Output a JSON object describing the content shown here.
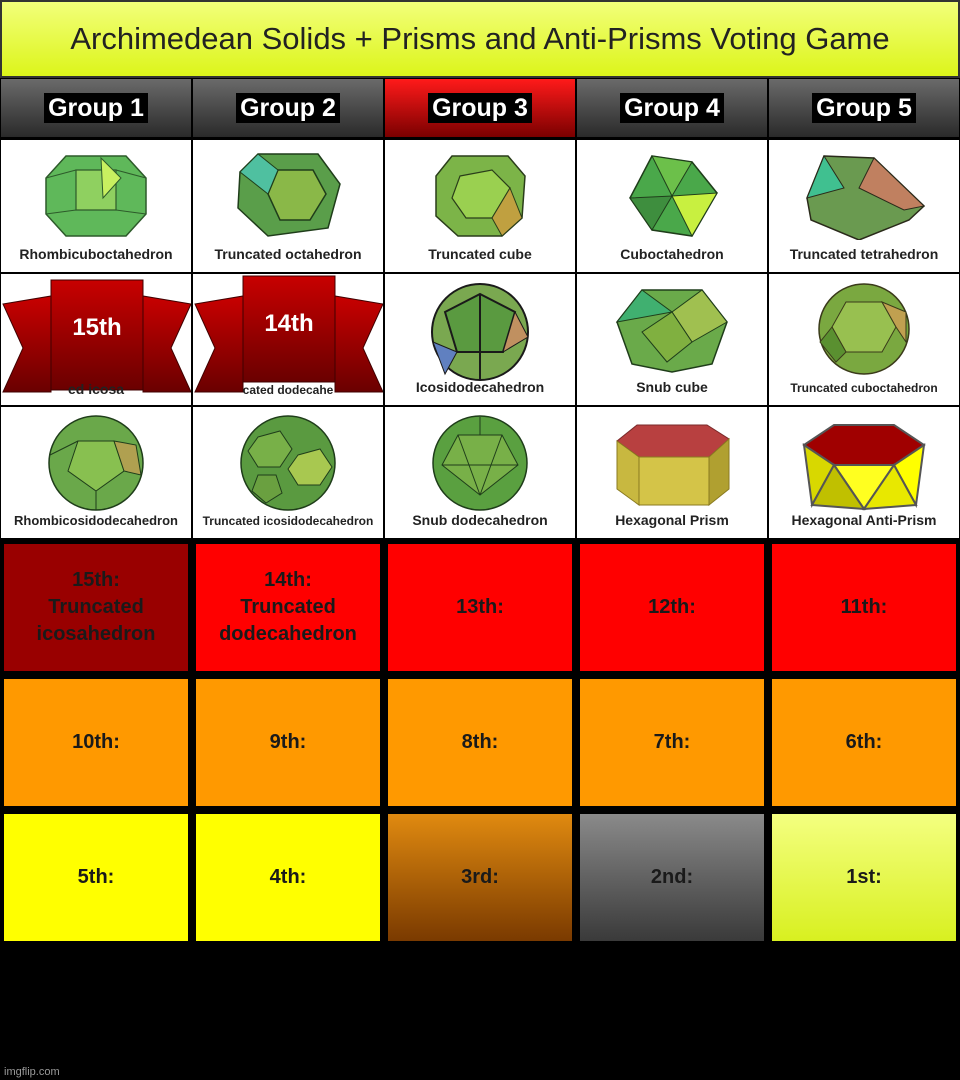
{
  "title": "Archimedean Solids + Prisms and Anti-Prisms Voting Game",
  "groups": [
    {
      "label": "Group 1",
      "highlight": false
    },
    {
      "label": "Group 2",
      "highlight": false
    },
    {
      "label": "Group 3",
      "highlight": true
    },
    {
      "label": "Group 4",
      "highlight": false
    },
    {
      "label": "Group 5",
      "highlight": false
    }
  ],
  "solids": {
    "row1": [
      "Rhombicuboctahedron",
      "Truncated octahedron",
      "Truncated cube",
      "Cuboctahedron",
      "Truncated tetrahedron"
    ],
    "row2": [
      "ed icosa",
      "cated dodecahe",
      "Icosidodecahedron",
      "Snub cube",
      "Truncated cuboctahedron"
    ],
    "row3": [
      "Rhombicosidodecahedron",
      "Truncated icosidodecahedron",
      "Snub dodecahedron",
      "Hexagonal Prism",
      "Hexagonal Anti-Prism"
    ]
  },
  "eliminated_banners": [
    "15th",
    "14th"
  ],
  "ranks": {
    "row1": [
      {
        "lines": [
          "15th:",
          "Truncated",
          "icosahedron"
        ],
        "color": "#990000"
      },
      {
        "lines": [
          "14th:",
          "Truncated",
          "dodecahedron"
        ],
        "color": "#ff0000"
      },
      {
        "lines": [
          "13th:"
        ],
        "color": "#ff0000"
      },
      {
        "lines": [
          "12th:"
        ],
        "color": "#ff0000"
      },
      {
        "lines": [
          "11th:"
        ],
        "color": "#ff0000"
      }
    ],
    "row2": [
      {
        "lines": [
          "10th:"
        ],
        "color": "#ff9900"
      },
      {
        "lines": [
          "9th:"
        ],
        "color": "#ff9900"
      },
      {
        "lines": [
          "8th:"
        ],
        "color": "#ff9900"
      },
      {
        "lines": [
          "7th:"
        ],
        "color": "#ff9900"
      },
      {
        "lines": [
          "6th:"
        ],
        "color": "#ff9900"
      }
    ],
    "row3": [
      {
        "lines": [
          "5th:"
        ],
        "color": "#ffff00"
      },
      {
        "lines": [
          "4th:"
        ],
        "color": "#ffff00"
      },
      {
        "lines": [
          "3rd:"
        ],
        "color": "bronze-gradient"
      },
      {
        "lines": [
          "2nd:"
        ],
        "color": "silver-gradient"
      },
      {
        "lines": [
          "1st:"
        ],
        "color": "gold-gradient"
      }
    ]
  },
  "watermark": "imgflip.com"
}
